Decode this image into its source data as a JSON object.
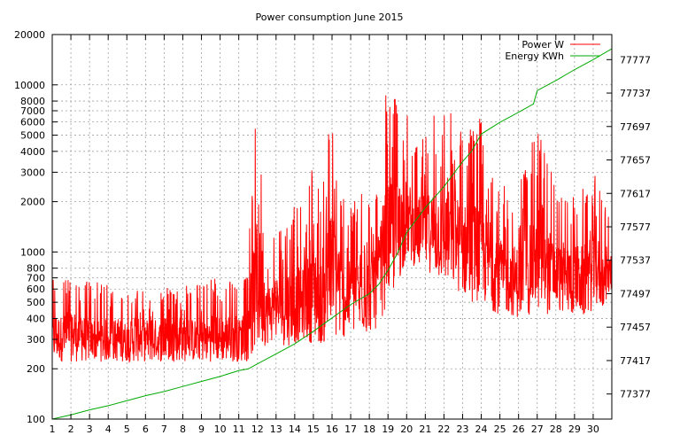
{
  "chart_data": {
    "type": "line",
    "title": "Power consumption June 2015",
    "xlabel": "",
    "ylabel": "",
    "xlim": [
      1,
      31
    ],
    "ylim": [
      100,
      20000
    ],
    "yscale": "log",
    "y2lim": [
      77347,
      77807
    ],
    "x_ticks": [
      "1",
      "2",
      "3",
      "4",
      "5",
      "6",
      "7",
      "8",
      "9",
      "10",
      "11",
      "12",
      "13",
      "14",
      "15",
      "16",
      "17",
      "18",
      "19",
      "20",
      "21",
      "22",
      "23",
      "24",
      "25",
      "26",
      "27",
      "28",
      "29",
      "30"
    ],
    "x_tick_values": [
      1,
      2,
      3,
      4,
      5,
      6,
      7,
      8,
      9,
      10,
      11,
      12,
      13,
      14,
      15,
      16,
      17,
      18,
      19,
      20,
      21,
      22,
      23,
      24,
      25,
      26,
      27,
      28,
      29,
      30
    ],
    "y_ticks": [
      "100",
      "200",
      "300",
      "400",
      "500",
      "600",
      "700",
      "800",
      "1000",
      "2000",
      "3000",
      "4000",
      "5000",
      "6000",
      "7000",
      "8000",
      "10000",
      "20000"
    ],
    "y_tick_values": [
      100,
      200,
      300,
      400,
      500,
      600,
      700,
      800,
      1000,
      2000,
      3000,
      4000,
      5000,
      6000,
      7000,
      8000,
      10000,
      20000
    ],
    "y2_ticks": [
      "77377",
      "77417",
      "77457",
      "77497",
      "77537",
      "77577",
      "77617",
      "77657",
      "77697",
      "77737",
      "77777"
    ],
    "y2_tick_values": [
      77377,
      77417,
      77457,
      77497,
      77537,
      77577,
      77617,
      77657,
      77697,
      77737,
      77777
    ],
    "grid": true,
    "legend_position": "top-right",
    "series": [
      {
        "name": "Power W",
        "axis": "left",
        "color": "#ff0000",
        "x": [
          1,
          1.5,
          2,
          2.5,
          3,
          3.5,
          4,
          4.5,
          5,
          5.5,
          6,
          6.5,
          7,
          7.5,
          8,
          8.5,
          9,
          9.5,
          10,
          10.5,
          11,
          11.5,
          12,
          12.5,
          13,
          13.5,
          14,
          14.5,
          15,
          15.5,
          16,
          16.5,
          17,
          17.5,
          18,
          18.5,
          19,
          19.5,
          20,
          20.5,
          21,
          21.5,
          22,
          22.5,
          23,
          23.5,
          24,
          24.5,
          25,
          25.5,
          26,
          26.5,
          27,
          27.5,
          28,
          28.5,
          29,
          29.5,
          30,
          30.5,
          31
        ],
        "min": [
          220,
          220,
          220,
          220,
          220,
          220,
          220,
          220,
          220,
          220,
          220,
          220,
          220,
          220,
          220,
          220,
          220,
          220,
          220,
          220,
          220,
          220,
          250,
          280,
          300,
          270,
          280,
          300,
          280,
          280,
          290,
          300,
          320,
          300,
          330,
          350,
          500,
          600,
          900,
          800,
          800,
          700,
          650,
          600,
          550,
          500,
          500,
          450,
          420,
          420,
          400,
          400,
          450,
          420,
          450,
          420,
          420,
          400,
          450,
          450,
          600
        ],
        "max": [
          800,
          700,
          750,
          700,
          700,
          650,
          650,
          650,
          600,
          650,
          650,
          650,
          600,
          650,
          650,
          650,
          650,
          700,
          700,
          700,
          650,
          750,
          7000,
          1200,
          1500,
          2000,
          2000,
          1800,
          3500,
          2000,
          8500,
          2200,
          2000,
          2500,
          2500,
          2500,
          12000,
          8000,
          7000,
          4500,
          5000,
          7000,
          7000,
          7000,
          5500,
          6000,
          6500,
          3500,
          2500,
          2500,
          2500,
          3500,
          6000,
          4000,
          2500,
          2200,
          2500,
          2500,
          3000,
          2500,
          1300
        ]
      },
      {
        "name": "Energy KWh",
        "axis": "right",
        "color": "#00aa00",
        "x": [
          1,
          2,
          3,
          4,
          5,
          6,
          7,
          8,
          9,
          10,
          11,
          11.5,
          12,
          13,
          14,
          15,
          16,
          17,
          18,
          18.5,
          19,
          19.5,
          20,
          21,
          22,
          23,
          23.5,
          24,
          25,
          26,
          26.8,
          27,
          28,
          29,
          30,
          31
        ],
        "y": [
          77347,
          77352,
          77358,
          77363,
          77369,
          77375,
          77380,
          77386,
          77392,
          77398,
          77405,
          77407,
          77413,
          77425,
          77437,
          77452,
          77468,
          77484,
          77497,
          77508,
          77525,
          77545,
          77570,
          77600,
          77625,
          77655,
          77668,
          77688,
          77702,
          77714,
          77724,
          77740,
          77752,
          77765,
          77777,
          77790
        ]
      }
    ]
  }
}
